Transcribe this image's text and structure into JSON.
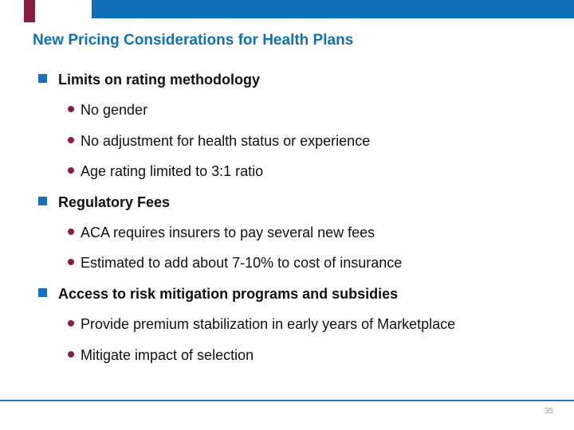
{
  "slide": {
    "title": "New Pricing Considerations for Health Plans",
    "page_number": "35",
    "colors": {
      "header_bar_blue": "#0E6FB8",
      "title_blue": "#1070B8",
      "square_bullet_blue": "#1371BD",
      "sub_bullet_maroon": "#8C1D40",
      "footer_rule_blue": "#2473B6",
      "page_number_gray": "#9A9A9A"
    },
    "sections": [
      {
        "heading": "Limits on rating methodology",
        "items": [
          "No gender",
          "No adjustment for health status or experience",
          "Age rating limited to 3:1 ratio"
        ]
      },
      {
        "heading": "Regulatory Fees",
        "items": [
          "ACA requires insurers to pay several new fees",
          "Estimated to add about 7-10% to cost of insurance"
        ]
      },
      {
        "heading": "Access to risk mitigation programs and subsidies",
        "items": [
          "Provide premium stabilization in early years of Marketplace",
          "Mitigate impact of selection"
        ]
      }
    ]
  }
}
